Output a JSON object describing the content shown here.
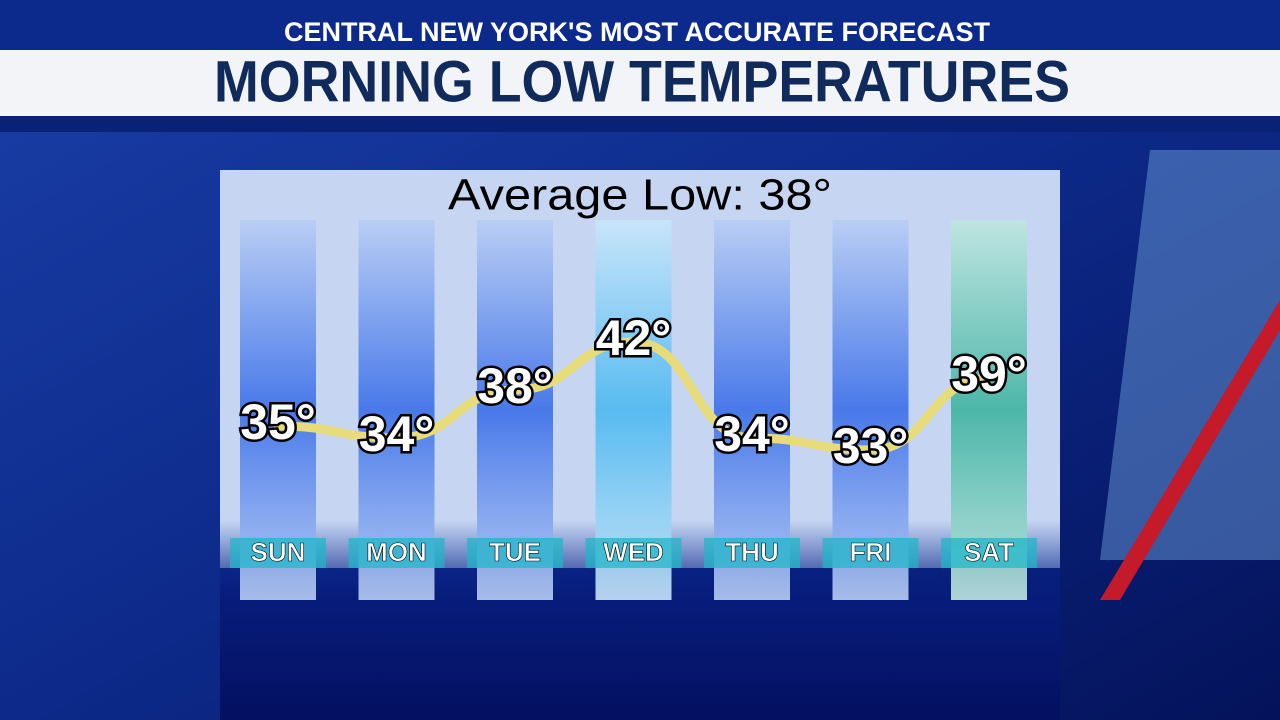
{
  "chart_data": {
    "type": "line",
    "header": "CENTRAL NEW YORK'S MOST ACCURATE FORECAST",
    "title": "MORNING LOW TEMPERATURES",
    "subtitle": "Average Low: 38°",
    "categories": [
      "SUN",
      "MON",
      "TUE",
      "WED",
      "THU",
      "FRI",
      "SAT"
    ],
    "values": [
      35,
      34,
      38,
      42,
      34,
      33,
      39
    ],
    "value_labels": [
      "35°",
      "34°",
      "38°",
      "42°",
      "34°",
      "33°",
      "39°"
    ],
    "color": "#e8dc7a"
  }
}
